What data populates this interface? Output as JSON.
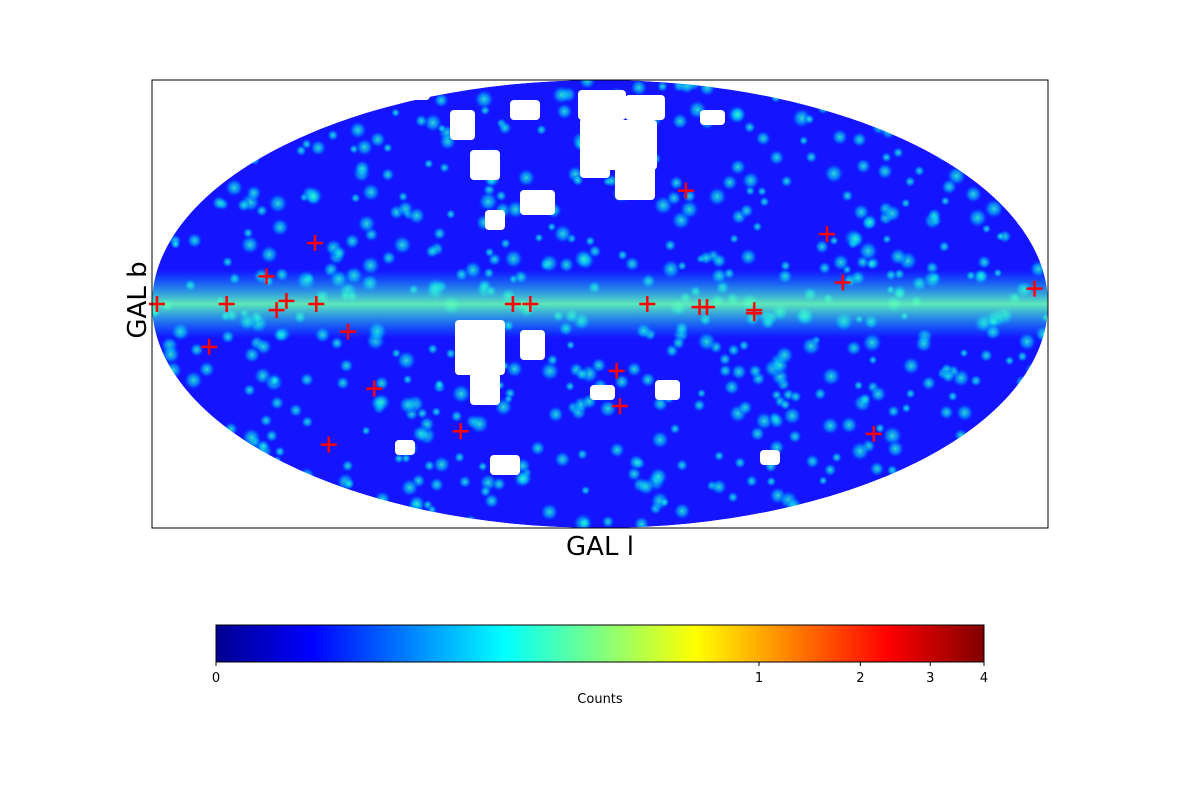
{
  "chart_data": {
    "type": "heatmap",
    "projection": "mollweide",
    "xlabel": "GAL l",
    "ylabel": "GAL b",
    "colormap": "jet",
    "colorbar": {
      "label": "Counts",
      "scale": "nonlinear",
      "ticks": [
        {
          "value": 0,
          "label": "0"
        },
        {
          "value": 1,
          "label": "1"
        },
        {
          "value": 2,
          "label": "2"
        },
        {
          "value": 3,
          "label": "3"
        },
        {
          "value": 4,
          "label": "4"
        }
      ],
      "range": [
        0,
        4
      ]
    },
    "markers": {
      "style": "plus",
      "color": "#ff0000",
      "points": [
        {
          "l": 178,
          "b": 0
        },
        {
          "l": 150,
          "b": 0
        },
        {
          "l": 135,
          "b": 9
        },
        {
          "l": 130,
          "b": -2
        },
        {
          "l": 126,
          "b": 1
        },
        {
          "l": 119,
          "b": 20
        },
        {
          "l": 114,
          "b": 0
        },
        {
          "l": 102,
          "b": -9
        },
        {
          "l": 98,
          "b": -28
        },
        {
          "l": 160,
          "b": -14
        },
        {
          "l": 140,
          "b": -48
        },
        {
          "l": 68,
          "b": -43
        },
        {
          "l": 35,
          "b": 0
        },
        {
          "l": 28,
          "b": 0
        },
        {
          "l": -7,
          "b": -22
        },
        {
          "l": -9,
          "b": -34
        },
        {
          "l": -19,
          "b": 0
        },
        {
          "l": -40,
          "b": 38
        },
        {
          "l": -40,
          "b": -1
        },
        {
          "l": -43,
          "b": -1
        },
        {
          "l": -62,
          "b": -3
        },
        {
          "l": -62,
          "b": -2
        },
        {
          "l": -96,
          "b": 23
        },
        {
          "l": -98,
          "b": 7
        },
        {
          "l": -135,
          "b": -44
        },
        {
          "l": -175,
          "b": 5
        }
      ]
    }
  }
}
